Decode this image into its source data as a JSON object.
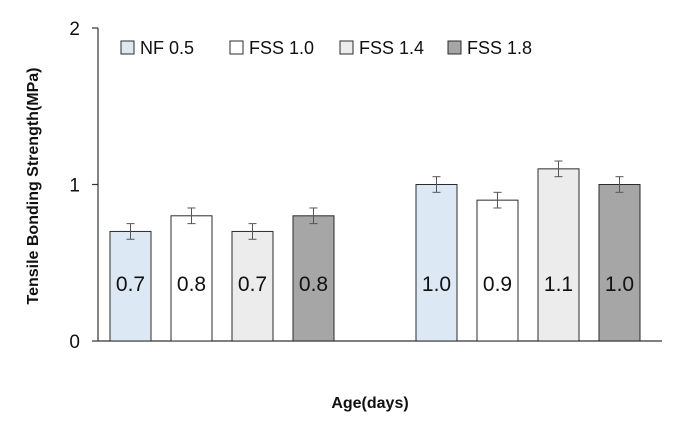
{
  "chart_data": {
    "type": "bar",
    "title": "",
    "xlabel": "Age(days)",
    "ylabel": "Tensile Bonding Strength(MPa)",
    "ylim": [
      0,
      2
    ],
    "yticks": [
      "0",
      "1",
      "2"
    ],
    "grid": false,
    "legend_position": "top",
    "groups": [
      "",
      ""
    ],
    "series": [
      {
        "name": "NF 0.5",
        "color": "#dce9f5",
        "values": [
          0.7,
          1.0
        ],
        "errors": [
          0.05,
          0.05
        ],
        "labels": [
          "0.7",
          "1.0"
        ]
      },
      {
        "name": "FSS 1.0",
        "color": "#ffffff",
        "values": [
          0.8,
          0.9
        ],
        "errors": [
          0.05,
          0.05
        ],
        "labels": [
          "0.8",
          "0.9"
        ]
      },
      {
        "name": "FSS 1.4",
        "color": "#ececec",
        "values": [
          0.7,
          1.1
        ],
        "errors": [
          0.05,
          0.05
        ],
        "labels": [
          "0.7",
          "1.1"
        ]
      },
      {
        "name": "FSS 1.8",
        "color": "#a6a6a6",
        "values": [
          0.8,
          1.0
        ],
        "errors": [
          0.05,
          0.05
        ],
        "labels": [
          "0.8",
          "1.0"
        ]
      }
    ]
  }
}
